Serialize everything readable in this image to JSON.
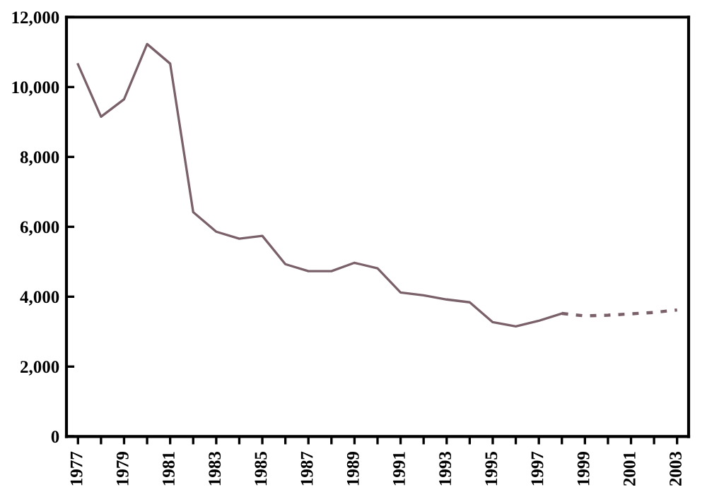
{
  "chart_data": {
    "type": "line",
    "categories": [
      "1977",
      null,
      "1979",
      null,
      "1981",
      null,
      "1983",
      null,
      "1985",
      null,
      "1987",
      null,
      "1989",
      null,
      "1991",
      null,
      "1993",
      null,
      "1995",
      null,
      "1997",
      null,
      "1999",
      null,
      "2001",
      null,
      "2003"
    ],
    "series": [
      {
        "color": "#7a6068",
        "line_style": "solid",
        "values": [
          10650,
          9150,
          9650,
          11230,
          10670,
          6420,
          5860,
          5660,
          5740,
          4930,
          4730,
          4730,
          4970,
          4810,
          4120,
          4040,
          3920,
          3840,
          3270,
          3150,
          3310,
          3520,
          null,
          null,
          null,
          null,
          null
        ]
      },
      {
        "color": "#7a6068",
        "line_style": "dashed",
        "values": [
          null,
          null,
          null,
          null,
          null,
          null,
          null,
          null,
          null,
          null,
          null,
          null,
          null,
          null,
          null,
          null,
          null,
          null,
          null,
          null,
          null,
          3520,
          3450,
          3470,
          3510,
          3550,
          3620
        ]
      }
    ],
    "ylim": [
      0,
      12000
    ],
    "yticks": [
      {
        "value": 0,
        "label": "0"
      },
      {
        "value": 2000,
        "label": "2,000"
      },
      {
        "value": 4000,
        "label": "4,000"
      },
      {
        "value": 6000,
        "label": "6,000"
      },
      {
        "value": 8000,
        "label": "8,000"
      },
      {
        "value": 10000,
        "label": "10,000"
      },
      {
        "value": 12000,
        "label": "12,000"
      }
    ],
    "grid": false,
    "legend": false,
    "marker": "none"
  }
}
